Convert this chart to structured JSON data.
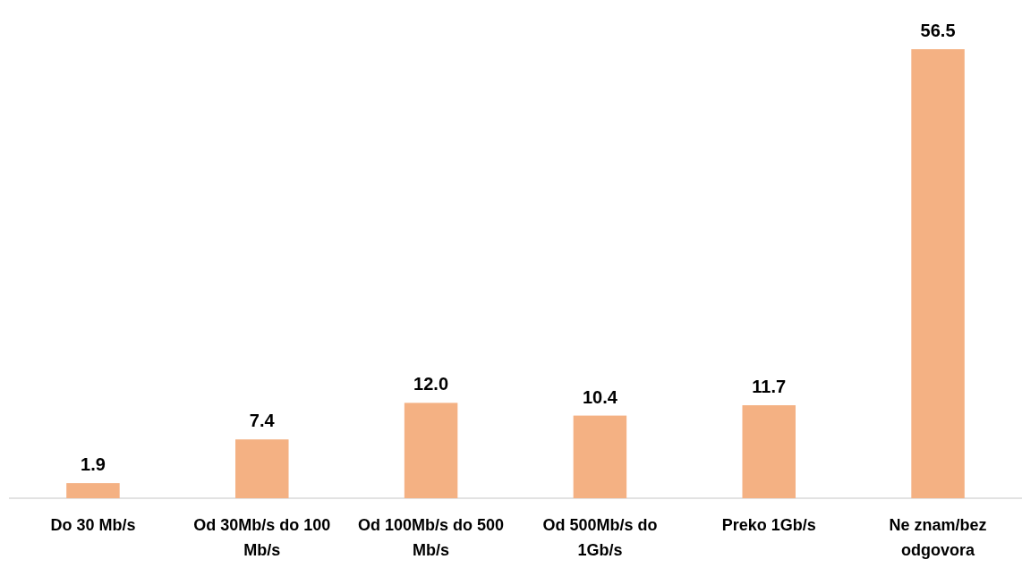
{
  "chart_data": {
    "type": "bar",
    "categories": [
      "Do 30 Mb/s",
      "Od 30Mb/s do 100 Mb/s",
      "Od 100Mb/s do 500 Mb/s",
      "Od 500Mb/s do 1Gb/s",
      "Preko 1Gb/s",
      "Ne znam/bez odgovora"
    ],
    "values": [
      1.9,
      7.4,
      12.0,
      10.4,
      11.7,
      56.5
    ],
    "value_labels": [
      "1.9",
      "7.4",
      "12.0",
      "10.4",
      "11.7",
      "56.5"
    ],
    "color": "#f4b183"
  }
}
